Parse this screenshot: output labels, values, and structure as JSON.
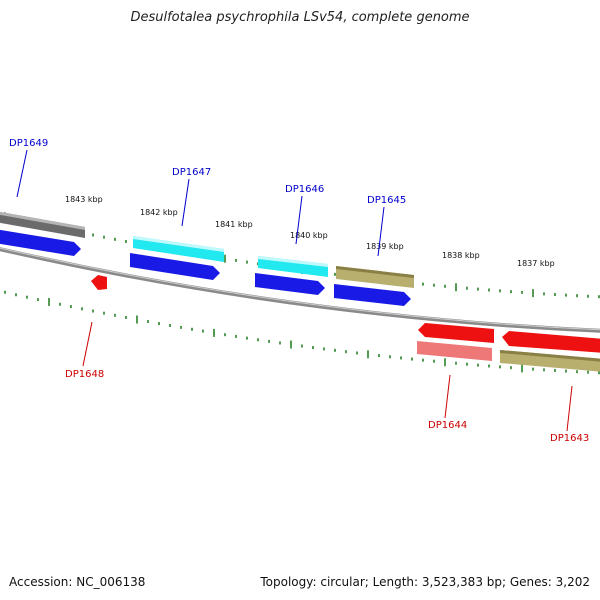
{
  "title": "Desulfotalea psychrophila LSv54, complete genome",
  "footer": {
    "accession": "Accession: NC_006138",
    "summary": "Topology: circular; Length: 3,523,383 bp; Genes: 3,202"
  },
  "scale_labels": [
    "1843 kbp",
    "1842 kbp",
    "1841 kbp",
    "1840 kbp",
    "1839 kbp",
    "1838 kbp",
    "1837 kbp"
  ],
  "genes": [
    {
      "id": "DP1649",
      "strand": "forward"
    },
    {
      "id": "DP1647",
      "strand": "forward"
    },
    {
      "id": "DP1646",
      "strand": "forward"
    },
    {
      "id": "DP1645",
      "strand": "forward"
    },
    {
      "id": "DP1648",
      "strand": "reverse"
    },
    {
      "id": "DP1644",
      "strand": "reverse"
    },
    {
      "id": "DP1643",
      "strand": "reverse"
    }
  ],
  "colors": {
    "forward_label": "#0000cc",
    "reverse_label": "#cc0000",
    "ticks": "#1a7a1a",
    "backbone": "#8a8a8a",
    "cds_blue": "#1a1ae6",
    "cds_cyan": "#22e8f0",
    "cds_olive": "#b8ae6e",
    "cds_red": "#ee1111",
    "cds_pink": "#ee7777",
    "cds_gray": "#6b6b6b"
  }
}
